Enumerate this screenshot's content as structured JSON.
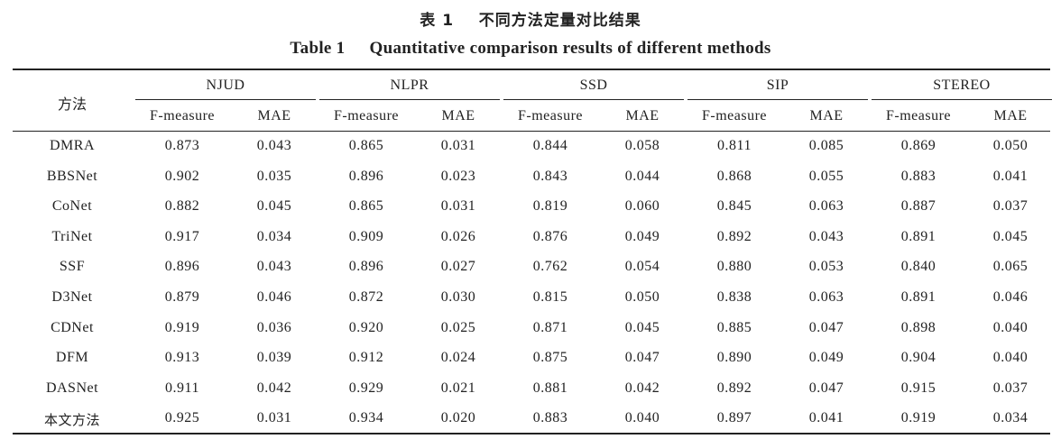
{
  "caption": {
    "cn_number": "表 1",
    "cn_text": "不同方法定量对比结果",
    "en_number": "Table 1",
    "en_text": "Quantitative comparison results of different methods"
  },
  "table": {
    "method_header": "方法",
    "groups": [
      "NJUD",
      "NLPR",
      "SSD",
      "SIP",
      "STEREO"
    ],
    "sub_headers": [
      "F-measure",
      "MAE"
    ],
    "rows": [
      {
        "method": "DMRA",
        "values": [
          "0.873",
          "0.043",
          "0.865",
          "0.031",
          "0.844",
          "0.058",
          "0.811",
          "0.085",
          "0.869",
          "0.050"
        ]
      },
      {
        "method": "BBSNet",
        "values": [
          "0.902",
          "0.035",
          "0.896",
          "0.023",
          "0.843",
          "0.044",
          "0.868",
          "0.055",
          "0.883",
          "0.041"
        ]
      },
      {
        "method": "CoNet",
        "values": [
          "0.882",
          "0.045",
          "0.865",
          "0.031",
          "0.819",
          "0.060",
          "0.845",
          "0.063",
          "0.887",
          "0.037"
        ]
      },
      {
        "method": "TriNet",
        "values": [
          "0.917",
          "0.034",
          "0.909",
          "0.026",
          "0.876",
          "0.049",
          "0.892",
          "0.043",
          "0.891",
          "0.045"
        ]
      },
      {
        "method": "SSF",
        "values": [
          "0.896",
          "0.043",
          "0.896",
          "0.027",
          "0.762",
          "0.054",
          "0.880",
          "0.053",
          "0.840",
          "0.065"
        ]
      },
      {
        "method": "D3Net",
        "values": [
          "0.879",
          "0.046",
          "0.872",
          "0.030",
          "0.815",
          "0.050",
          "0.838",
          "0.063",
          "0.891",
          "0.046"
        ]
      },
      {
        "method": "CDNet",
        "values": [
          "0.919",
          "0.036",
          "0.920",
          "0.025",
          "0.871",
          "0.045",
          "0.885",
          "0.047",
          "0.898",
          "0.040"
        ]
      },
      {
        "method": "DFM",
        "values": [
          "0.913",
          "0.039",
          "0.912",
          "0.024",
          "0.875",
          "0.047",
          "0.890",
          "0.049",
          "0.904",
          "0.040"
        ]
      },
      {
        "method": "DASNet",
        "values": [
          "0.911",
          "0.042",
          "0.929",
          "0.021",
          "0.881",
          "0.042",
          "0.892",
          "0.047",
          "0.915",
          "0.037"
        ]
      },
      {
        "method": "本文方法",
        "values": [
          "0.925",
          "0.031",
          "0.934",
          "0.020",
          "0.883",
          "0.040",
          "0.897",
          "0.041",
          "0.919",
          "0.034"
        ]
      }
    ]
  }
}
